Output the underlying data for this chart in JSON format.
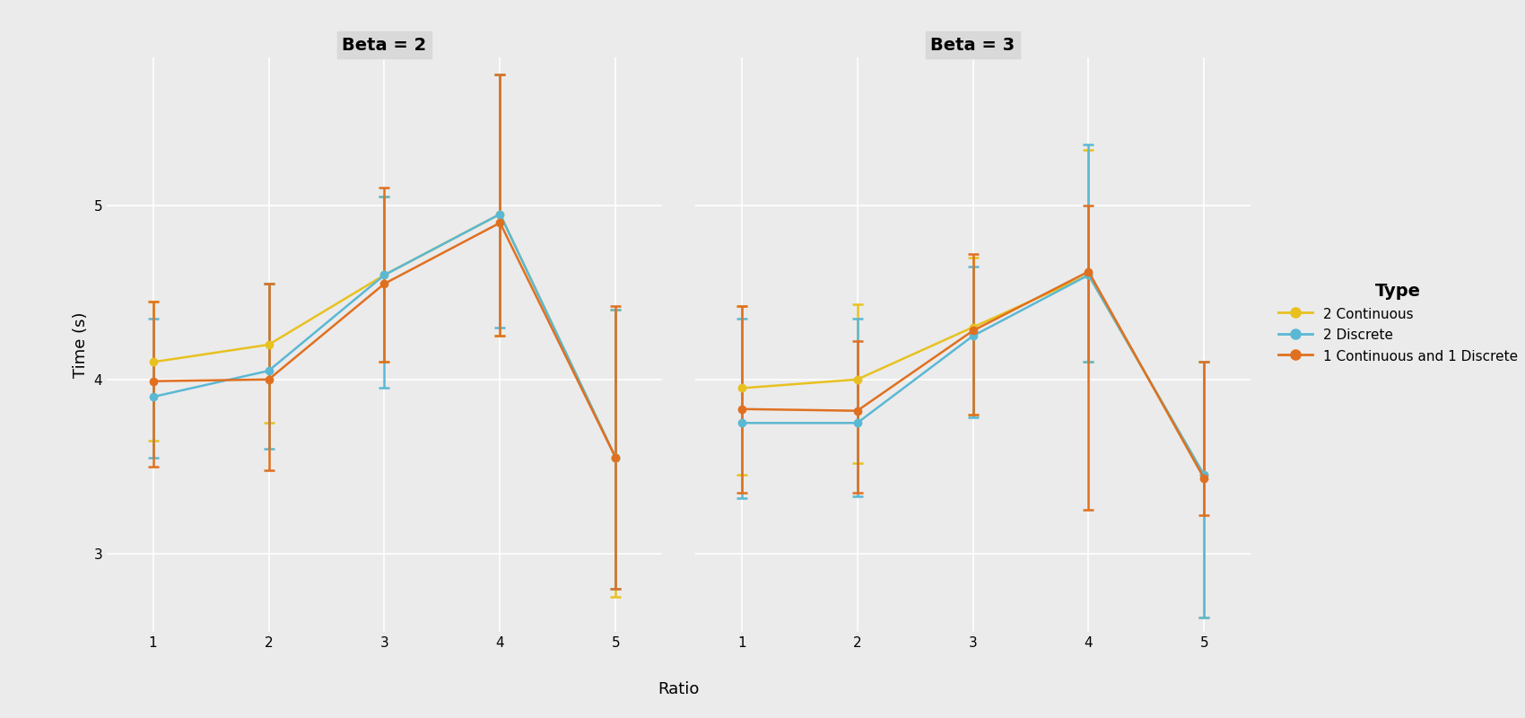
{
  "panels": [
    {
      "title": "Beta = 2",
      "x": [
        1,
        2,
        3,
        4,
        5
      ],
      "series": [
        {
          "label": "2 Continuous",
          "color": "#E8C120",
          "y": [
            4.1,
            4.2,
            4.6,
            4.95,
            3.55
          ],
          "y_lo": [
            3.65,
            3.75,
            4.1,
            4.25,
            2.75
          ],
          "y_hi": [
            4.45,
            4.55,
            5.05,
            5.75,
            4.4
          ]
        },
        {
          "label": "2 Discrete",
          "color": "#5BB8D4",
          "y": [
            3.9,
            4.05,
            4.6,
            4.95,
            3.55
          ],
          "y_lo": [
            3.55,
            3.6,
            3.95,
            4.3,
            2.8
          ],
          "y_hi": [
            4.35,
            4.55,
            5.05,
            5.75,
            4.4
          ]
        },
        {
          "label": "1 Continuous and 1 Discrete",
          "color": "#E07020",
          "y": [
            3.99,
            4.0,
            4.55,
            4.9,
            3.55
          ],
          "y_lo": [
            3.5,
            3.48,
            4.1,
            4.25,
            2.8
          ],
          "y_hi": [
            4.45,
            4.55,
            5.1,
            5.75,
            4.42
          ]
        }
      ]
    },
    {
      "title": "Beta = 3",
      "x": [
        1,
        2,
        3,
        4,
        5
      ],
      "series": [
        {
          "label": "2 Continuous",
          "color": "#E8C120",
          "y": [
            3.95,
            4.0,
            4.3,
            4.6,
            3.45
          ],
          "y_lo": [
            3.45,
            3.52,
            3.8,
            4.1,
            2.63
          ],
          "y_hi": [
            4.42,
            4.43,
            4.7,
            5.32,
            4.1
          ]
        },
        {
          "label": "2 Discrete",
          "color": "#5BB8D4",
          "y": [
            3.75,
            3.75,
            4.25,
            4.6,
            3.45
          ],
          "y_lo": [
            3.32,
            3.33,
            3.78,
            4.1,
            2.63
          ],
          "y_hi": [
            4.35,
            4.35,
            4.65,
            5.35,
            4.1
          ]
        },
        {
          "label": "1 Continuous and 1 Discrete",
          "color": "#E07020",
          "y": [
            3.83,
            3.82,
            4.28,
            4.62,
            3.43
          ],
          "y_lo": [
            3.35,
            3.35,
            3.8,
            3.25,
            3.22
          ],
          "y_hi": [
            4.42,
            4.22,
            4.72,
            5.0,
            4.1
          ]
        }
      ]
    }
  ],
  "xlabel": "Ratio",
  "ylabel": "Time (s)",
  "ylim": [
    2.55,
    5.85
  ],
  "yticks": [
    3,
    4,
    5
  ],
  "xticks": [
    1,
    2,
    3,
    4,
    5
  ],
  "bg_color": "#EBEBEB",
  "grid_color": "#FFFFFF",
  "panel_header_color": "#D9D9D9",
  "legend_title": "Type",
  "capsize": 4,
  "linewidth": 1.8,
  "markersize": 6
}
